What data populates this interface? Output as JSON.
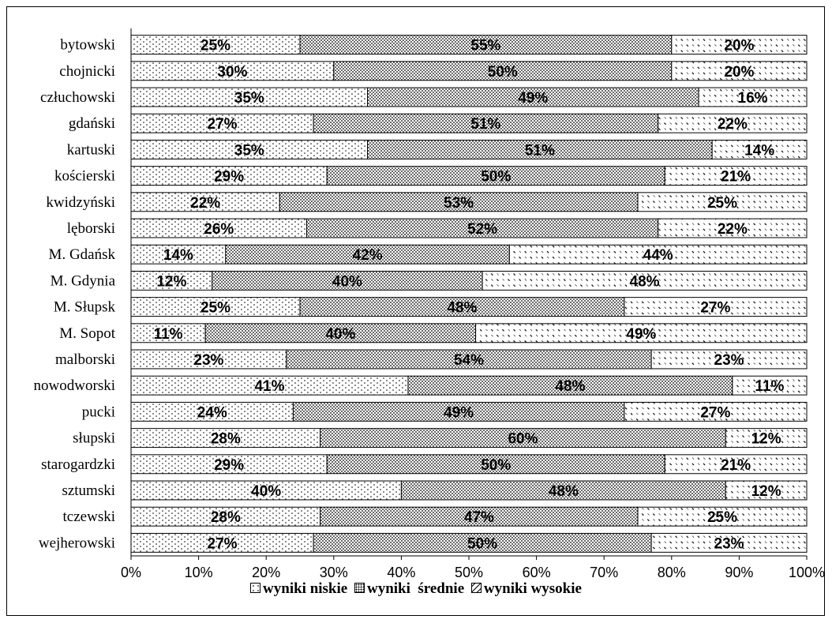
{
  "chart_data": {
    "type": "bar",
    "orientation": "horizontal",
    "stacked": "percent",
    "categories": [
      "bytowski",
      "chojnicki",
      "człuchowski",
      "gdański",
      "kartuski",
      "kościerski",
      "kwidzyński",
      "lęborski",
      "M. Gdańsk",
      "M. Gdynia",
      "M. Słupsk",
      "M. Sopot",
      "malborski",
      "nowodworski",
      "pucki",
      "słupski",
      "starogardzki",
      "sztumski",
      "tczewski",
      "wejherowski"
    ],
    "series": [
      {
        "name": "wyniki niskie",
        "pattern": "sparse-dots",
        "values": [
          25,
          30,
          35,
          27,
          35,
          29,
          22,
          26,
          14,
          12,
          25,
          11,
          23,
          41,
          24,
          28,
          29,
          40,
          28,
          27
        ]
      },
      {
        "name": "wyniki  średnie",
        "pattern": "dense-dots",
        "values": [
          55,
          50,
          49,
          51,
          51,
          50,
          53,
          52,
          42,
          40,
          48,
          40,
          54,
          48,
          49,
          60,
          50,
          48,
          47,
          50
        ]
      },
      {
        "name": "wyniki wysokie",
        "pattern": "diagonal",
        "values": [
          20,
          20,
          16,
          22,
          14,
          21,
          25,
          22,
          44,
          48,
          27,
          49,
          23,
          11,
          27,
          12,
          21,
          12,
          25,
          23
        ]
      }
    ],
    "xlim": [
      0,
      100
    ],
    "xticks": [
      "0%",
      "10%",
      "20%",
      "30%",
      "40%",
      "50%",
      "60%",
      "70%",
      "80%",
      "90%",
      "100%"
    ],
    "legend_position": "bottom",
    "data_labels": true,
    "grid": false,
    "colors": {
      "fill": "#ffffff",
      "pattern": "#000000",
      "border": "#000000"
    }
  }
}
